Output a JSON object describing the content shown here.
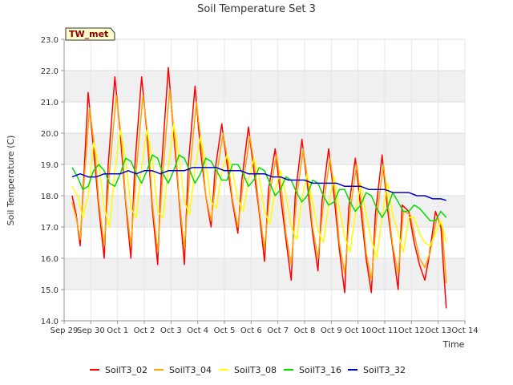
{
  "chart_data": {
    "type": "line",
    "title": "Soil Temperature Set 3",
    "xlabel": "Time",
    "ylabel": "Soil Temperature (C)",
    "badge": "TW_met",
    "ylim": [
      14.0,
      23.0
    ],
    "xlim": [
      0,
      15
    ],
    "y_ticks": [
      "14.0",
      "15.0",
      "16.0",
      "17.0",
      "18.0",
      "19.0",
      "20.0",
      "21.0",
      "22.0",
      "23.0"
    ],
    "x_ticks": [
      "Sep 29",
      "Sep 30",
      "Oct 1",
      "Oct 2",
      "Oct 3",
      "Oct 4",
      "Oct 5",
      "Oct 6",
      "Oct 7",
      "Oct 8",
      "Oct 9",
      "Oct 10",
      "Oct 11",
      "Oct 12",
      "Oct 13",
      "Oct 14"
    ],
    "x_ticks_note": "x values are days from Sep 29",
    "grid": true,
    "legend_position": "bottom",
    "series": [
      {
        "name": "SoilT3_02",
        "color": "#ff0000",
        "x": [
          0.3,
          0.45,
          0.6,
          0.75,
          0.9,
          1.1,
          1.3,
          1.5,
          1.65,
          1.9,
          2.1,
          2.3,
          2.5,
          2.65,
          2.9,
          3.1,
          3.3,
          3.5,
          3.65,
          3.9,
          4.1,
          4.3,
          4.5,
          4.65,
          4.9,
          5.1,
          5.3,
          5.5,
          5.65,
          5.9,
          6.1,
          6.3,
          6.5,
          6.65,
          6.9,
          7.1,
          7.3,
          7.5,
          7.65,
          7.9,
          8.1,
          8.3,
          8.5,
          8.65,
          8.9,
          9.1,
          9.3,
          9.5,
          9.65,
          9.9,
          10.1,
          10.3,
          10.5,
          10.65,
          10.9,
          11.1,
          11.3,
          11.5,
          11.65,
          11.9,
          12.1,
          12.3,
          12.5,
          12.65,
          12.9,
          13.1,
          13.3,
          13.5,
          13.65,
          13.9,
          14.1,
          14.3
        ],
        "y": [
          18.0,
          17.4,
          16.4,
          18.8,
          21.3,
          19.5,
          17.6,
          16.0,
          19.0,
          21.8,
          20.0,
          17.8,
          16.0,
          19.0,
          21.8,
          20.0,
          17.6,
          15.8,
          19.0,
          22.1,
          20.0,
          17.9,
          15.8,
          19.0,
          21.5,
          19.5,
          18.0,
          17.0,
          18.8,
          20.3,
          19.0,
          17.8,
          16.8,
          18.5,
          20.2,
          18.8,
          17.5,
          15.9,
          18.2,
          19.5,
          18.0,
          16.6,
          15.3,
          18.0,
          19.8,
          18.4,
          16.8,
          15.6,
          17.8,
          19.5,
          18.0,
          16.3,
          14.9,
          17.6,
          19.2,
          17.6,
          16.0,
          14.9,
          17.4,
          19.3,
          17.6,
          16.3,
          15.0,
          17.7,
          17.5,
          16.5,
          15.8,
          15.3,
          16.0,
          17.5,
          17.0,
          14.4
        ]
      },
      {
        "name": "SoilT3_04",
        "color": "#ffa500",
        "x": [
          0.3,
          0.45,
          0.6,
          0.75,
          0.95,
          1.15,
          1.3,
          1.5,
          1.7,
          1.95,
          2.15,
          2.3,
          2.5,
          2.7,
          2.95,
          3.15,
          3.3,
          3.5,
          3.7,
          3.95,
          4.15,
          4.3,
          4.5,
          4.7,
          4.95,
          5.15,
          5.3,
          5.5,
          5.7,
          5.95,
          6.15,
          6.3,
          6.5,
          6.7,
          6.95,
          7.15,
          7.3,
          7.5,
          7.7,
          7.95,
          8.15,
          8.3,
          8.5,
          8.7,
          8.95,
          9.15,
          9.3,
          9.5,
          9.7,
          9.95,
          10.15,
          10.3,
          10.5,
          10.7,
          10.95,
          11.15,
          11.3,
          11.5,
          11.7,
          11.95,
          12.15,
          12.3,
          12.5,
          12.7,
          12.95,
          13.15,
          13.3,
          13.5,
          13.7,
          13.95,
          14.15,
          14.3
        ],
        "y": [
          17.8,
          17.3,
          16.6,
          18.5,
          20.8,
          19.5,
          17.8,
          16.4,
          18.8,
          21.2,
          19.8,
          17.9,
          16.4,
          18.8,
          21.2,
          19.8,
          17.8,
          16.2,
          18.8,
          21.4,
          19.8,
          18.0,
          16.3,
          18.7,
          21.0,
          19.5,
          18.0,
          17.2,
          18.6,
          20.0,
          19.0,
          17.9,
          17.0,
          18.4,
          19.9,
          18.8,
          17.6,
          16.3,
          18.1,
          19.3,
          18.1,
          16.8,
          15.8,
          17.9,
          19.5,
          18.3,
          17.0,
          16.0,
          17.7,
          19.2,
          18.0,
          16.5,
          15.5,
          17.5,
          19.0,
          17.6,
          16.2,
          15.3,
          17.3,
          19.0,
          17.5,
          16.4,
          15.5,
          17.5,
          17.4,
          16.6,
          16.0,
          15.7,
          16.2,
          17.3,
          17.0,
          15.2
        ]
      },
      {
        "name": "SoilT3_08",
        "color": "#ffff00",
        "x": [
          0.3,
          0.5,
          0.7,
          0.9,
          1.1,
          1.3,
          1.5,
          1.7,
          1.9,
          2.1,
          2.3,
          2.5,
          2.7,
          2.9,
          3.1,
          3.3,
          3.5,
          3.7,
          3.9,
          4.1,
          4.3,
          4.5,
          4.7,
          4.9,
          5.1,
          5.3,
          5.5,
          5.7,
          5.9,
          6.1,
          6.3,
          6.5,
          6.7,
          6.9,
          7.1,
          7.3,
          7.5,
          7.7,
          7.9,
          8.1,
          8.3,
          8.5,
          8.7,
          8.9,
          9.1,
          9.3,
          9.5,
          9.7,
          9.9,
          10.1,
          10.3,
          10.5,
          10.7,
          10.9,
          11.1,
          11.3,
          11.5,
          11.7,
          11.9,
          12.1,
          12.3,
          12.5,
          12.7,
          12.9,
          13.1,
          13.3,
          13.5,
          13.7,
          13.9,
          14.1,
          14.3
        ],
        "y": [
          18.3,
          18.0,
          17.3,
          18.0,
          19.7,
          19.0,
          17.6,
          17.0,
          18.8,
          20.1,
          19.2,
          17.6,
          17.3,
          18.9,
          20.1,
          19.2,
          17.5,
          17.3,
          18.9,
          20.3,
          19.3,
          17.8,
          17.4,
          18.9,
          19.9,
          19.0,
          17.8,
          17.6,
          18.8,
          19.3,
          18.8,
          17.9,
          17.5,
          18.5,
          19.2,
          18.6,
          17.5,
          17.1,
          18.2,
          18.8,
          18.0,
          17.0,
          16.6,
          17.9,
          18.7,
          17.8,
          16.9,
          16.5,
          17.7,
          18.6,
          17.6,
          16.7,
          16.2,
          17.4,
          18.4,
          17.4,
          16.6,
          16.0,
          17.3,
          18.4,
          17.4,
          16.8,
          16.2,
          17.3,
          17.3,
          16.8,
          16.5,
          16.4,
          16.8,
          17.2,
          16.5
        ]
      },
      {
        "name": "SoilT3_16",
        "color": "#00dd00",
        "x": [
          0.3,
          0.5,
          0.7,
          0.9,
          1.1,
          1.3,
          1.5,
          1.7,
          1.9,
          2.1,
          2.3,
          2.5,
          2.7,
          2.9,
          3.1,
          3.3,
          3.5,
          3.7,
          3.9,
          4.1,
          4.3,
          4.5,
          4.7,
          4.9,
          5.1,
          5.3,
          5.5,
          5.7,
          5.9,
          6.1,
          6.3,
          6.5,
          6.7,
          6.9,
          7.1,
          7.3,
          7.5,
          7.7,
          7.9,
          8.1,
          8.3,
          8.5,
          8.7,
          8.9,
          9.1,
          9.3,
          9.5,
          9.7,
          9.9,
          10.1,
          10.3,
          10.5,
          10.7,
          10.9,
          11.1,
          11.3,
          11.5,
          11.7,
          11.9,
          12.1,
          12.3,
          12.5,
          12.7,
          12.9,
          13.1,
          13.3,
          13.5,
          13.7,
          13.9,
          14.1,
          14.3
        ],
        "y": [
          18.9,
          18.6,
          18.2,
          18.3,
          18.8,
          19.0,
          18.8,
          18.4,
          18.3,
          18.7,
          19.2,
          19.1,
          18.7,
          18.4,
          18.8,
          19.3,
          19.2,
          18.7,
          18.4,
          18.8,
          19.3,
          19.2,
          18.8,
          18.4,
          18.7,
          19.2,
          19.1,
          18.8,
          18.5,
          18.5,
          19.0,
          19.0,
          18.7,
          18.3,
          18.5,
          18.9,
          18.8,
          18.4,
          18.0,
          18.2,
          18.6,
          18.5,
          18.1,
          17.8,
          18.0,
          18.5,
          18.4,
          18.0,
          17.7,
          17.8,
          18.2,
          18.2,
          17.8,
          17.5,
          17.7,
          18.1,
          18.0,
          17.6,
          17.3,
          17.6,
          18.1,
          17.8,
          17.5,
          17.5,
          17.7,
          17.6,
          17.4,
          17.2,
          17.2,
          17.5,
          17.3
        ]
      },
      {
        "name": "SoilT3_32",
        "color": "#0000cc",
        "x": [
          0.3,
          0.6,
          0.9,
          1.2,
          1.5,
          1.8,
          2.1,
          2.4,
          2.7,
          3.0,
          3.3,
          3.6,
          3.9,
          4.2,
          4.5,
          4.8,
          5.1,
          5.4,
          5.7,
          6.0,
          6.3,
          6.6,
          6.9,
          7.2,
          7.5,
          7.8,
          8.1,
          8.4,
          8.7,
          9.0,
          9.3,
          9.6,
          9.9,
          10.2,
          10.5,
          10.8,
          11.1,
          11.4,
          11.7,
          12.0,
          12.3,
          12.6,
          12.9,
          13.2,
          13.5,
          13.8,
          14.1,
          14.3
        ],
        "y": [
          18.6,
          18.7,
          18.6,
          18.6,
          18.7,
          18.7,
          18.7,
          18.8,
          18.7,
          18.8,
          18.8,
          18.7,
          18.8,
          18.8,
          18.8,
          18.9,
          18.9,
          18.9,
          18.9,
          18.8,
          18.8,
          18.8,
          18.7,
          18.7,
          18.7,
          18.6,
          18.6,
          18.5,
          18.5,
          18.5,
          18.4,
          18.4,
          18.4,
          18.4,
          18.3,
          18.3,
          18.3,
          18.2,
          18.2,
          18.2,
          18.1,
          18.1,
          18.1,
          18.0,
          18.0,
          17.9,
          17.9,
          17.85
        ]
      }
    ]
  }
}
